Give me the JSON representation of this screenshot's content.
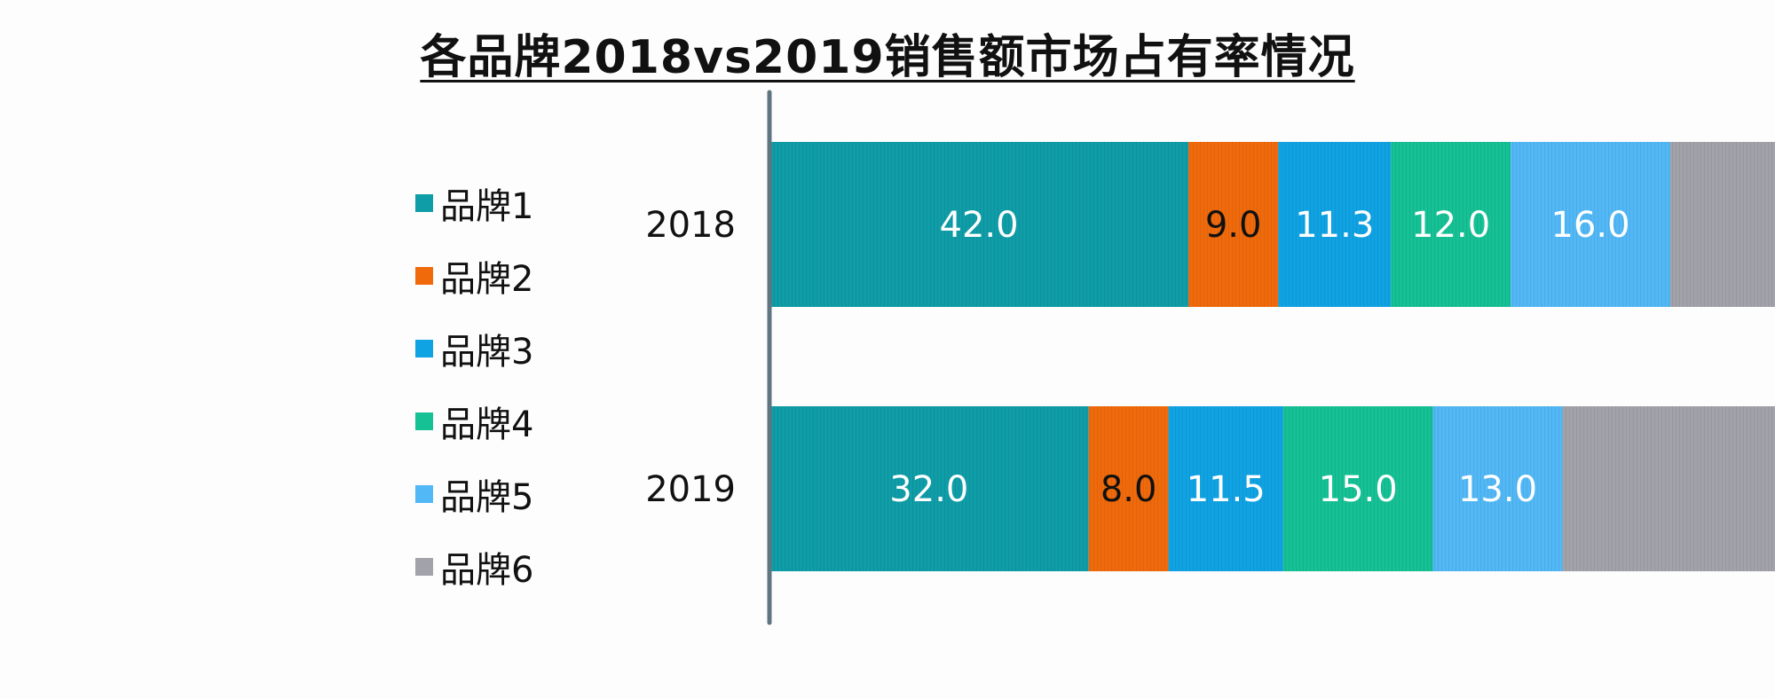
{
  "chart_data": {
    "type": "bar",
    "orientation": "horizontal",
    "stacked": true,
    "title": "各品牌2018vs2019销售额市场占有率情况",
    "categories": [
      "2018",
      "2019"
    ],
    "series": [
      {
        "name": "品牌1",
        "color": "#0f9da8",
        "values": [
          42.0,
          32.0
        ],
        "labels": [
          "42.0",
          "32.0"
        ]
      },
      {
        "name": "品牌2",
        "color": "#f06a0c",
        "values": [
          9.0,
          8.0
        ],
        "labels": [
          "9.0",
          "8.0"
        ]
      },
      {
        "name": "品牌3",
        "color": "#10a3e3",
        "values": [
          11.3,
          11.5
        ],
        "labels": [
          "11.3",
          "11.5"
        ]
      },
      {
        "name": "品牌4",
        "color": "#15c195",
        "values": [
          12.0,
          15.0
        ],
        "labels": [
          "12.0",
          "15.0"
        ]
      },
      {
        "name": "品牌5",
        "color": "#52b8f6",
        "values": [
          16.0,
          13.0
        ],
        "labels": [
          "16.0",
          "13.0"
        ]
      },
      {
        "name": "品牌6",
        "color": "#a2a3aa",
        "values": [
          9.7,
          20.5
        ],
        "labels": [
          "",
          ""
        ]
      }
    ],
    "legend_position": "left",
    "grid": false,
    "xlim": [
      0,
      100
    ]
  }
}
